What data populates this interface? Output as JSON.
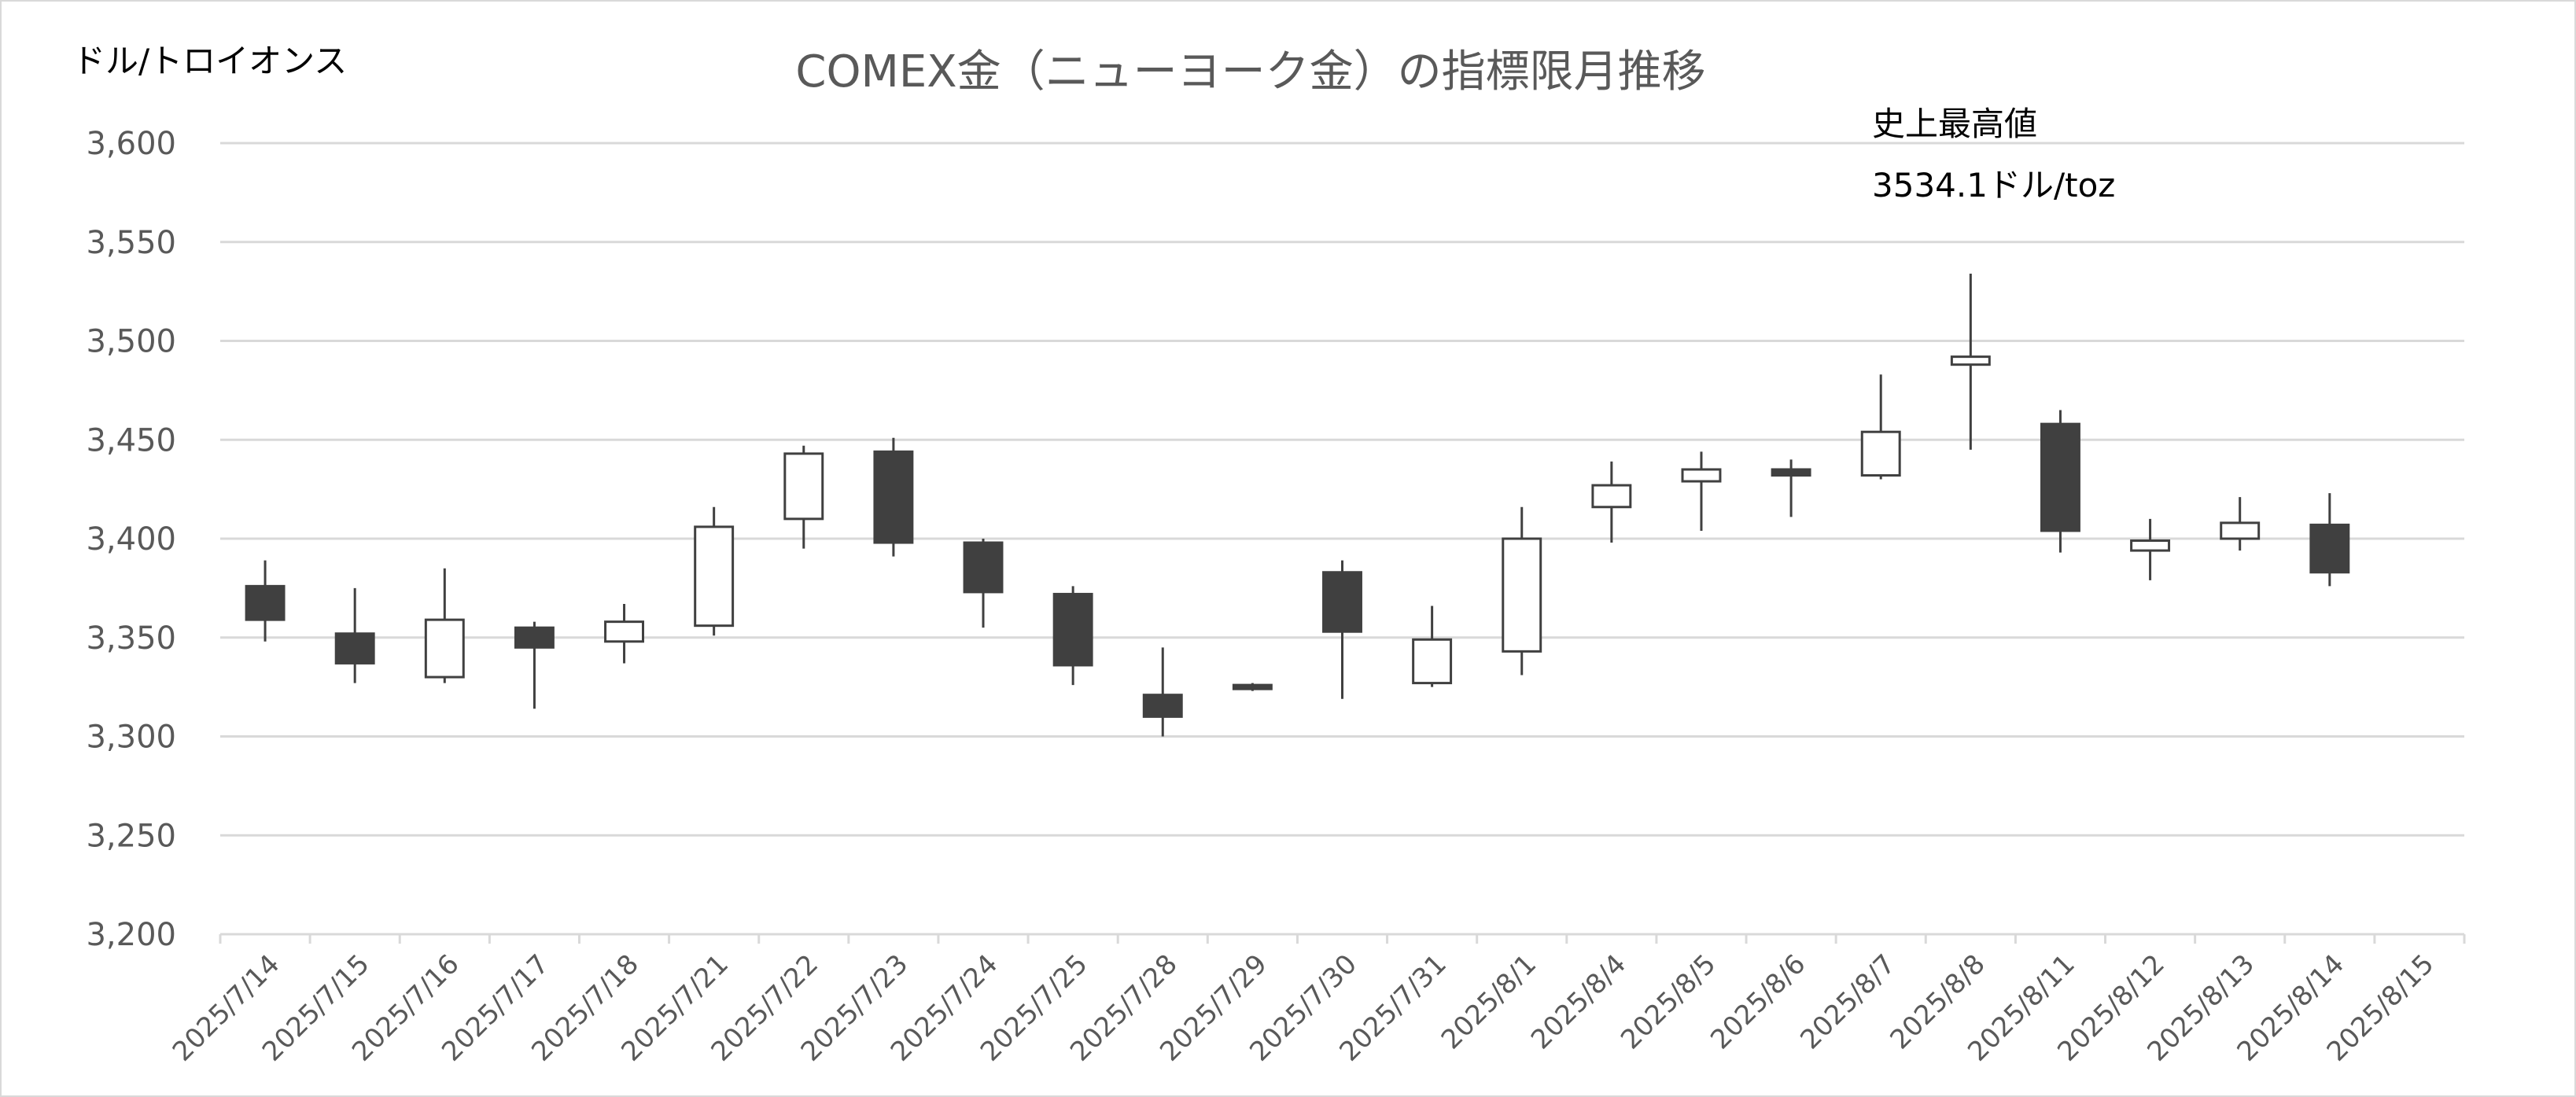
{
  "chart_data": {
    "type": "candlestick",
    "title": "COMEX金（ニューヨーク金）の指標限月推移",
    "ylabel": "ドル/トロイオンス",
    "ylim": [
      3200,
      3600
    ],
    "yticks": [
      "3,200",
      "3,250",
      "3,300",
      "3,350",
      "3,400",
      "3,450",
      "3,500",
      "3,550",
      "3,600"
    ],
    "ytick_values": [
      3200,
      3250,
      3300,
      3350,
      3400,
      3450,
      3500,
      3550,
      3600
    ],
    "categories": [
      "2025/7/14",
      "2025/7/15",
      "2025/7/16",
      "2025/7/17",
      "2025/7/18",
      "2025/7/21",
      "2025/7/22",
      "2025/7/23",
      "2025/7/24",
      "2025/7/25",
      "2025/7/28",
      "2025/7/29",
      "2025/7/30",
      "2025/7/31",
      "2025/8/1",
      "2025/8/4",
      "2025/8/5",
      "2025/8/6",
      "2025/8/7",
      "2025/8/8",
      "2025/8/11",
      "2025/8/12",
      "2025/8/13",
      "2025/8/14",
      "2025/8/15"
    ],
    "ohlc": [
      {
        "open": 3376,
        "high": 3389,
        "low": 3348,
        "close": 3359
      },
      {
        "open": 3352,
        "high": 3375,
        "low": 3327,
        "close": 3337
      },
      {
        "open": 3330,
        "high": 3385,
        "low": 3327,
        "close": 3359
      },
      {
        "open": 3355,
        "high": 3358,
        "low": 3314,
        "close": 3345
      },
      {
        "open": 3348,
        "high": 3367,
        "low": 3337,
        "close": 3358
      },
      {
        "open": 3356,
        "high": 3416,
        "low": 3351,
        "close": 3406
      },
      {
        "open": 3410,
        "high": 3447,
        "low": 3395,
        "close": 3443
      },
      {
        "open": 3444,
        "high": 3451,
        "low": 3391,
        "close": 3398
      },
      {
        "open": 3398,
        "high": 3400,
        "low": 3355,
        "close": 3373
      },
      {
        "open": 3372,
        "high": 3376,
        "low": 3326,
        "close": 3336
      },
      {
        "open": 3321,
        "high": 3345,
        "low": 3300,
        "close": 3310
      },
      {
        "open": 3326,
        "high": 3327,
        "low": 3323,
        "close": 3324
      },
      {
        "open": 3383,
        "high": 3389,
        "low": 3319,
        "close": 3353
      },
      {
        "open": 3327,
        "high": 3366,
        "low": 3325,
        "close": 3349
      },
      {
        "open": 3343,
        "high": 3416,
        "low": 3331,
        "close": 3400
      },
      {
        "open": 3416,
        "high": 3439,
        "low": 3398,
        "close": 3427
      },
      {
        "open": 3429,
        "high": 3444,
        "low": 3404,
        "close": 3435
      },
      {
        "open": 3435,
        "high": 3440,
        "low": 3411,
        "close": 3432
      },
      {
        "open": 3432,
        "high": 3483,
        "low": 3430,
        "close": 3454
      },
      {
        "open": 3488,
        "high": 3534,
        "low": 3445,
        "close": 3492
      },
      {
        "open": 3458,
        "high": 3465,
        "low": 3393,
        "close": 3404
      },
      {
        "open": 3394,
        "high": 3410,
        "low": 3379,
        "close": 3399
      },
      {
        "open": 3400,
        "high": 3421,
        "low": 3394,
        "close": 3408
      },
      {
        "open": 3407,
        "high": 3423,
        "low": 3376,
        "close": 3383
      },
      null
    ],
    "annotation": [
      "史上最高値",
      "3534.1ドル/toz"
    ],
    "grid": true,
    "legend": "none",
    "colors": {
      "up": "#ffffff",
      "down": "#404040",
      "wick": "#404040",
      "grid": "#d9d9d9"
    }
  }
}
